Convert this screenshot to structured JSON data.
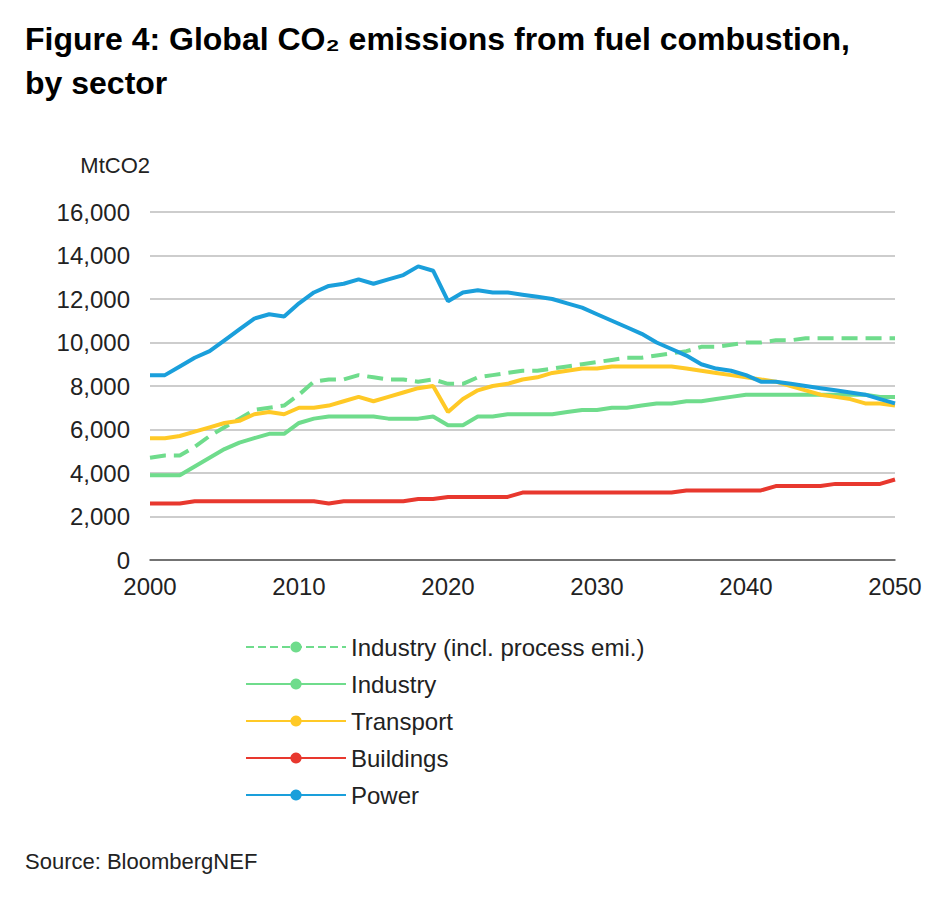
{
  "chart_data": {
    "type": "line",
    "title": "Figure 4: Global CO₂ emissions from fuel combustion, by sector",
    "ylabel": "MtCO2",
    "source": "Source: BloombergNEF",
    "x": [
      2000,
      2001,
      2002,
      2003,
      2004,
      2005,
      2006,
      2007,
      2008,
      2009,
      2010,
      2011,
      2012,
      2013,
      2014,
      2015,
      2016,
      2017,
      2018,
      2019,
      2020,
      2021,
      2022,
      2023,
      2024,
      2025,
      2026,
      2027,
      2028,
      2029,
      2030,
      2031,
      2032,
      2033,
      2034,
      2035,
      2036,
      2037,
      2038,
      2039,
      2040,
      2041,
      2042,
      2043,
      2044,
      2045,
      2046,
      2047,
      2048,
      2049,
      2050
    ],
    "xlim": [
      2000,
      2050
    ],
    "xticks": [
      2000,
      2010,
      2020,
      2030,
      2040,
      2050
    ],
    "ylim": [
      0,
      16000
    ],
    "yticks": [
      0,
      {
        "value": 2000,
        "label": "2,000"
      },
      {
        "value": 4000,
        "label": "4,000"
      },
      {
        "value": 6000,
        "label": "6,000"
      },
      {
        "value": 8000,
        "label": "8,000"
      },
      {
        "value": 10000,
        "label": "10,000"
      },
      {
        "value": 12000,
        "label": "12,000"
      },
      {
        "value": 14000,
        "label": "14,000"
      },
      {
        "value": 16000,
        "label": "16,000"
      }
    ],
    "grid": true,
    "legend": "bottom",
    "marker": "none",
    "series": [
      {
        "name": "Industry (incl. process emi.)",
        "color": "#6fdc8c",
        "line_style": "dashed",
        "values": [
          4700,
          4800,
          4800,
          5200,
          5700,
          6100,
          6500,
          6900,
          7000,
          7100,
          7600,
          8200,
          8300,
          8300,
          8500,
          8400,
          8300,
          8300,
          8200,
          8300,
          8100,
          8100,
          8400,
          8500,
          8600,
          8700,
          8700,
          8800,
          8900,
          9000,
          9100,
          9200,
          9300,
          9300,
          9400,
          9500,
          9600,
          9800,
          9800,
          9900,
          10000,
          10000,
          10100,
          10100,
          10200,
          10200,
          10200,
          10200,
          10200,
          10200,
          10200
        ]
      },
      {
        "name": "Industry",
        "color": "#6fdc8c",
        "line_style": "solid",
        "values": [
          3900,
          3900,
          3900,
          4300,
          4700,
          5100,
          5400,
          5600,
          5800,
          5800,
          6300,
          6500,
          6600,
          6600,
          6600,
          6600,
          6500,
          6500,
          6500,
          6600,
          6200,
          6200,
          6600,
          6600,
          6700,
          6700,
          6700,
          6700,
          6800,
          6900,
          6900,
          7000,
          7000,
          7100,
          7200,
          7200,
          7300,
          7300,
          7400,
          7500,
          7600,
          7600,
          7600,
          7600,
          7600,
          7600,
          7600,
          7600,
          7600,
          7500,
          7500
        ]
      },
      {
        "name": "Transport",
        "color": "#ffc926",
        "line_style": "solid",
        "values": [
          5600,
          5600,
          5700,
          5900,
          6100,
          6300,
          6400,
          6700,
          6800,
          6700,
          7000,
          7000,
          7100,
          7300,
          7500,
          7300,
          7500,
          7700,
          7900,
          8000,
          6800,
          7400,
          7800,
          8000,
          8100,
          8300,
          8400,
          8600,
          8700,
          8800,
          8800,
          8900,
          8900,
          8900,
          8900,
          8900,
          8800,
          8700,
          8600,
          8500,
          8400,
          8300,
          8200,
          8000,
          7800,
          7600,
          7500,
          7400,
          7200,
          7200,
          7100
        ]
      },
      {
        "name": "Buildings",
        "color": "#e8382e",
        "line_style": "solid",
        "values": [
          2600,
          2600,
          2600,
          2700,
          2700,
          2700,
          2700,
          2700,
          2700,
          2700,
          2700,
          2700,
          2600,
          2700,
          2700,
          2700,
          2700,
          2700,
          2800,
          2800,
          2900,
          2900,
          2900,
          2900,
          2900,
          3100,
          3100,
          3100,
          3100,
          3100,
          3100,
          3100,
          3100,
          3100,
          3100,
          3100,
          3200,
          3200,
          3200,
          3200,
          3200,
          3200,
          3400,
          3400,
          3400,
          3400,
          3500,
          3500,
          3500,
          3500,
          3700
        ]
      },
      {
        "name": "Power",
        "color": "#1a9fdb",
        "line_style": "solid",
        "values": [
          8500,
          8500,
          8900,
          9300,
          9600,
          10100,
          10600,
          11100,
          11300,
          11200,
          11800,
          12300,
          12600,
          12700,
          12900,
          12700,
          12900,
          13100,
          13500,
          13300,
          11900,
          12300,
          12400,
          12300,
          12300,
          12200,
          12100,
          12000,
          11800,
          11600,
          11300,
          11000,
          10700,
          10400,
          10000,
          9700,
          9400,
          9000,
          8800,
          8700,
          8500,
          8200,
          8200,
          8100,
          8000,
          7900,
          7800,
          7700,
          7600,
          7400,
          7200
        ]
      }
    ]
  }
}
